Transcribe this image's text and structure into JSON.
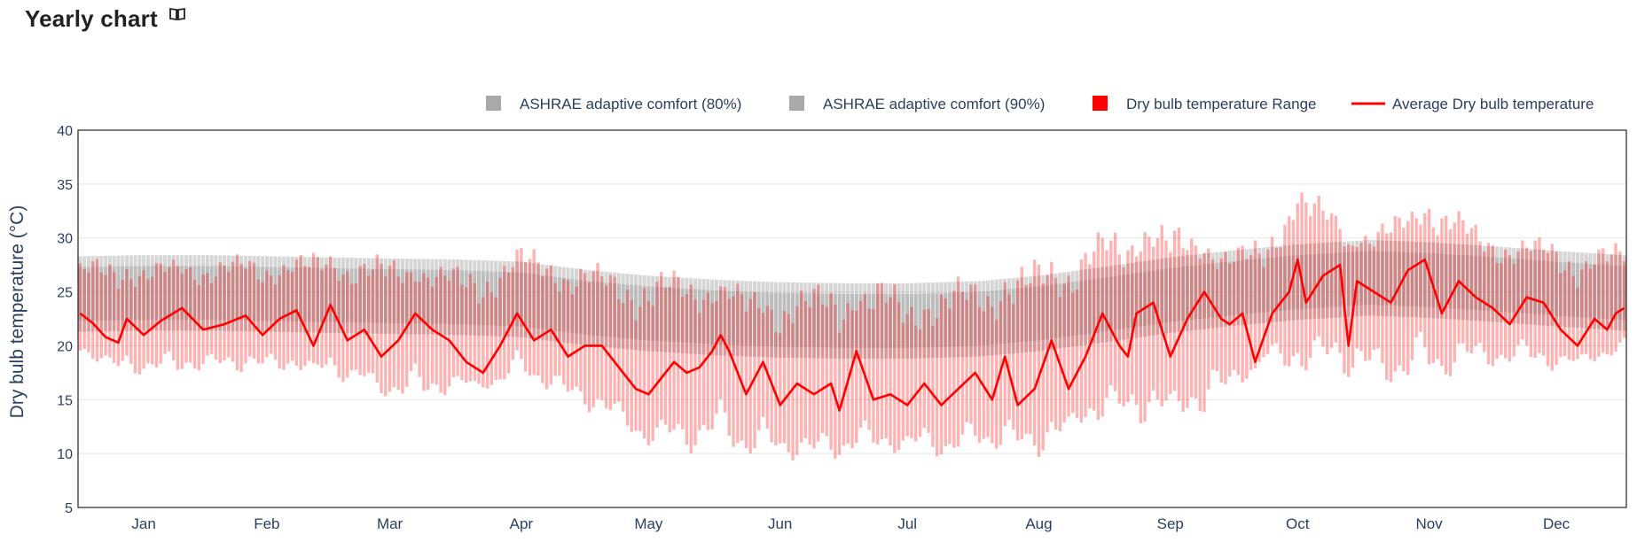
{
  "header": {
    "title": "Yearly chart",
    "info_icon": "open-book-icon"
  },
  "colors": {
    "comfort80": "#b4b4b4",
    "comfort90": "#a0a0a0",
    "range": "#ff0000",
    "average": "#ff0000",
    "grid": "#e6e6e6",
    "axis_text": "#2a3f5f"
  },
  "chart_data": {
    "type": "bar",
    "title": "",
    "ylabel": "Dry bulb temperature (°C)",
    "xlabel": "",
    "ylim": [
      5,
      40
    ],
    "yticks": [
      5,
      10,
      15,
      20,
      25,
      30,
      35,
      40
    ],
    "grid": true,
    "legend_position": "top-right",
    "x_unit": "day of year (1-365)",
    "month_ticks": [
      {
        "label": "Jan",
        "day": 16
      },
      {
        "label": "Feb",
        "day": 45
      },
      {
        "label": "Mar",
        "day": 74
      },
      {
        "label": "Apr",
        "day": 105
      },
      {
        "label": "May",
        "day": 135
      },
      {
        "label": "Jun",
        "day": 166
      },
      {
        "label": "Jul",
        "day": 196
      },
      {
        "label": "Aug",
        "day": 227
      },
      {
        "label": "Sep",
        "day": 258
      },
      {
        "label": "Oct",
        "day": 288
      },
      {
        "label": "Nov",
        "day": 319
      },
      {
        "label": "Dec",
        "day": 349
      }
    ],
    "legend": [
      {
        "name": "ASHRAE adaptive comfort (80%)",
        "symbol": "square",
        "color": "#a9a9a9"
      },
      {
        "name": "ASHRAE adaptive comfort (90%)",
        "symbol": "square",
        "color": "#a9a9a9"
      },
      {
        "name": "Dry bulb temperature Range",
        "symbol": "square",
        "color": "#ff0000"
      },
      {
        "name": "Average Dry bulb temperature",
        "symbol": "line",
        "color": "#ff0000"
      }
    ],
    "series": [
      {
        "name": "ASHRAE adaptive comfort (80%)",
        "kind": "band",
        "x": [
          1,
          15,
          32,
          46,
          60,
          74,
          91,
          105,
          121,
          135,
          152,
          166,
          182,
          196,
          213,
          227,
          244,
          258,
          274,
          288,
          305,
          319,
          335,
          349,
          365
        ],
        "low": [
          21.3,
          21.4,
          21.4,
          21.3,
          21.2,
          21.1,
          21.0,
          20.8,
          20.0,
          19.5,
          19.1,
          18.9,
          18.8,
          18.8,
          19.0,
          19.5,
          20.4,
          21.2,
          21.9,
          22.4,
          22.8,
          22.6,
          22.2,
          21.8,
          21.4
        ],
        "high": [
          28.3,
          28.4,
          28.4,
          28.3,
          28.2,
          28.1,
          28.0,
          27.8,
          27.0,
          26.5,
          26.1,
          25.9,
          25.8,
          25.8,
          26.0,
          26.5,
          27.4,
          28.2,
          28.9,
          29.4,
          29.8,
          29.6,
          29.2,
          28.8,
          28.4
        ]
      },
      {
        "name": "ASHRAE adaptive comfort (90%)",
        "kind": "band",
        "x": [
          1,
          15,
          32,
          46,
          60,
          74,
          91,
          105,
          121,
          135,
          152,
          166,
          182,
          196,
          213,
          227,
          244,
          258,
          274,
          288,
          305,
          319,
          335,
          349,
          365
        ],
        "low": [
          22.3,
          22.4,
          22.4,
          22.3,
          22.2,
          22.1,
          22.0,
          21.8,
          21.0,
          20.5,
          20.1,
          19.9,
          19.8,
          19.8,
          20.0,
          20.5,
          21.4,
          22.2,
          22.9,
          23.4,
          23.8,
          23.6,
          23.2,
          22.8,
          22.4
        ],
        "high": [
          27.3,
          27.4,
          27.4,
          27.3,
          27.2,
          27.1,
          27.0,
          26.8,
          26.0,
          25.5,
          25.1,
          24.9,
          24.8,
          24.8,
          25.0,
          25.5,
          26.4,
          27.2,
          27.9,
          28.4,
          28.8,
          28.6,
          28.2,
          27.8,
          27.4
        ]
      },
      {
        "name": "Average Dry bulb temperature",
        "kind": "line",
        "x": [
          1,
          4,
          7,
          10,
          12,
          16,
          20,
          25,
          30,
          35,
          40,
          44,
          48,
          52,
          56,
          60,
          64,
          68,
          72,
          76,
          80,
          84,
          88,
          92,
          96,
          100,
          104,
          108,
          112,
          116,
          120,
          124,
          128,
          132,
          135,
          138,
          141,
          144,
          147,
          150,
          152,
          154,
          158,
          162,
          166,
          170,
          174,
          178,
          180,
          184,
          188,
          192,
          196,
          200,
          204,
          208,
          212,
          216,
          219,
          222,
          226,
          230,
          234,
          238,
          242,
          246,
          248,
          250,
          254,
          258,
          262,
          266,
          270,
          272,
          275,
          278,
          282,
          286,
          288,
          290,
          294,
          298,
          300,
          302,
          306,
          310,
          314,
          318,
          322,
          326,
          330,
          334,
          338,
          342,
          346,
          350,
          354,
          358,
          361,
          363,
          365
        ],
        "y": [
          23.0,
          22.1,
          20.8,
          20.3,
          22.5,
          21.0,
          22.3,
          23.5,
          21.5,
          22.0,
          22.8,
          21.0,
          22.5,
          23.3,
          20.0,
          23.8,
          20.5,
          21.5,
          19.0,
          20.5,
          23.0,
          21.5,
          20.5,
          18.5,
          17.5,
          20.0,
          23.0,
          20.5,
          21.5,
          19.0,
          20.0,
          20.0,
          18.0,
          16.0,
          15.5,
          17.0,
          18.5,
          17.5,
          18.0,
          19.5,
          21.0,
          19.5,
          15.5,
          18.5,
          14.5,
          16.5,
          15.5,
          16.5,
          14.0,
          19.5,
          15.0,
          15.5,
          14.5,
          16.5,
          14.5,
          16.0,
          17.5,
          15.0,
          19.0,
          14.5,
          16.0,
          20.5,
          16.0,
          19.0,
          23.0,
          20.0,
          19.0,
          23.0,
          24.0,
          19.0,
          22.5,
          25.0,
          22.5,
          22.0,
          23.0,
          18.5,
          23.0,
          25.0,
          28.0,
          24.0,
          26.5,
          27.5,
          20.0,
          26.0,
          25.0,
          24.0,
          27.0,
          28.0,
          23.0,
          26.0,
          24.5,
          23.5,
          22.0,
          24.5,
          24.0,
          21.5,
          20.0,
          22.5,
          21.5,
          23.0,
          23.5
        ]
      },
      {
        "name": "Dry bulb temperature Range",
        "kind": "range_bars",
        "note": "one vertical bar per day (1-365); low/high values follow the x/envelope below",
        "x": [
          1,
          10,
          20,
          32,
          46,
          60,
          74,
          82,
          91,
          100,
          105,
          115,
          125,
          135,
          145,
          152,
          158,
          166,
          176,
          182,
          190,
          196,
          204,
          213,
          220,
          227,
          236,
          244,
          252,
          258,
          266,
          274,
          280,
          288,
          296,
          305,
          312,
          319,
          328,
          335,
          342,
          349,
          356,
          365
        ],
        "high": [
          28.0,
          28.5,
          28.0,
          28.5,
          28.5,
          29.0,
          28.5,
          28.0,
          27.5,
          28.5,
          29.5,
          28.5,
          27.5,
          27.5,
          27.0,
          26.5,
          25.5,
          25.5,
          26.0,
          26.0,
          26.5,
          25.5,
          26.0,
          27.0,
          27.5,
          28.5,
          30.0,
          31.0,
          32.5,
          31.5,
          30.5,
          29.5,
          30.5,
          35.5,
          33.0,
          31.0,
          32.5,
          34.5,
          32.0,
          31.0,
          30.0,
          30.5,
          29.0,
          30.0
        ],
        "low": [
          19.0,
          17.5,
          17.0,
          17.5,
          17.5,
          17.0,
          15.0,
          14.5,
          16.0,
          16.0,
          17.0,
          15.0,
          13.0,
          10.5,
          10.0,
          10.5,
          9.5,
          9.5,
          9.0,
          9.5,
          10.0,
          10.0,
          9.5,
          10.0,
          10.5,
          9.5,
          12.0,
          13.0,
          12.5,
          13.0,
          13.0,
          16.0,
          18.5,
          17.0,
          17.5,
          16.5,
          16.0,
          16.5,
          17.5,
          18.0,
          18.0,
          17.5,
          18.5,
          18.5
        ]
      }
    ]
  }
}
